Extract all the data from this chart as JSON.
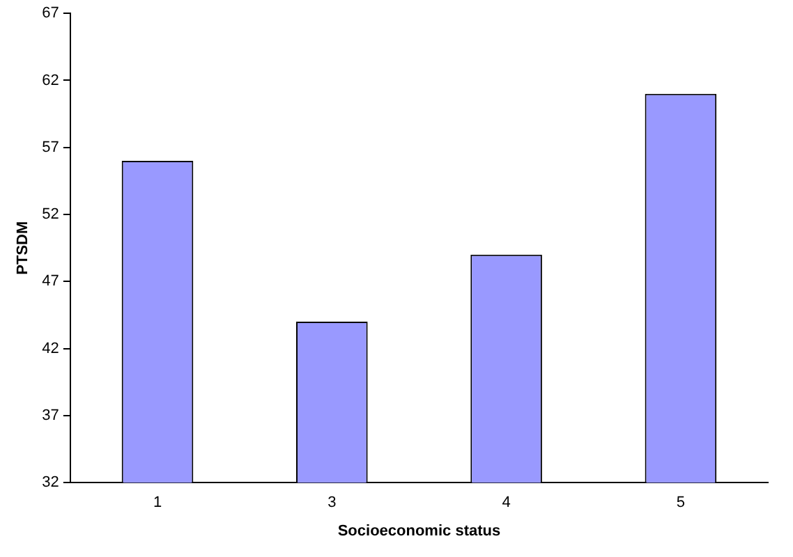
{
  "chart_data": {
    "type": "bar",
    "xlabel": "Socioeconomic status",
    "ylabel": "PTSDM",
    "categories": [
      "1",
      "3",
      "4",
      "5"
    ],
    "values": [
      56,
      44,
      49,
      61
    ],
    "color": "#9999ff",
    "ylim": [
      32,
      67
    ],
    "yticks": [
      32,
      37,
      42,
      47,
      52,
      57,
      62,
      67
    ],
    "grid": false,
    "legend": false
  }
}
